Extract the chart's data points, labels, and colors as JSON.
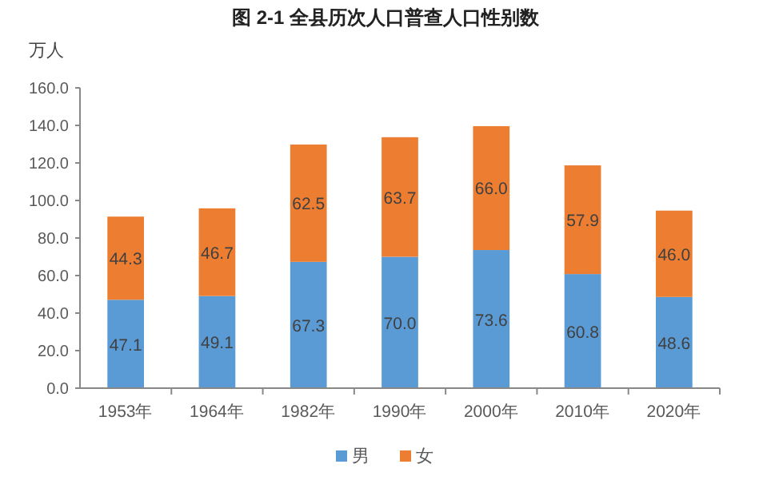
{
  "chart_data": {
    "type": "bar",
    "title": "图 2-1 全县历次人口普查人口性别数",
    "ylabel": "万人",
    "categories": [
      "1953年",
      "1964年",
      "1982年",
      "1990年",
      "2000年",
      "2010年",
      "2020年"
    ],
    "series": [
      {
        "name": "男",
        "color": "#5b9bd5",
        "values": [
          47.1,
          49.1,
          67.3,
          70.0,
          73.6,
          60.8,
          48.6
        ],
        "value_labels": [
          "47.1",
          "49.1",
          "67.3",
          "70.0",
          "73.6",
          "60.8",
          "48.6"
        ]
      },
      {
        "name": "女",
        "color": "#ed7d31",
        "values": [
          44.3,
          46.7,
          62.5,
          63.7,
          66.0,
          57.9,
          46.0
        ],
        "value_labels": [
          "44.3",
          "46.7",
          "62.5",
          "63.7",
          "66.0",
          "57.9",
          "46.0"
        ]
      }
    ],
    "stacked": true,
    "ylim": [
      0,
      160
    ],
    "yticks": [
      {
        "value": 0,
        "label": "0.0"
      },
      {
        "value": 20,
        "label": "20.0"
      },
      {
        "value": 40,
        "label": "40.0"
      },
      {
        "value": 60,
        "label": "60.0"
      },
      {
        "value": 80,
        "label": "80.0"
      },
      {
        "value": 100,
        "label": "100.0"
      },
      {
        "value": 120,
        "label": "120.0"
      },
      {
        "value": 140,
        "label": "140.0"
      },
      {
        "value": 160,
        "label": "160.0"
      }
    ],
    "grid": false,
    "legend": "bottom"
  }
}
